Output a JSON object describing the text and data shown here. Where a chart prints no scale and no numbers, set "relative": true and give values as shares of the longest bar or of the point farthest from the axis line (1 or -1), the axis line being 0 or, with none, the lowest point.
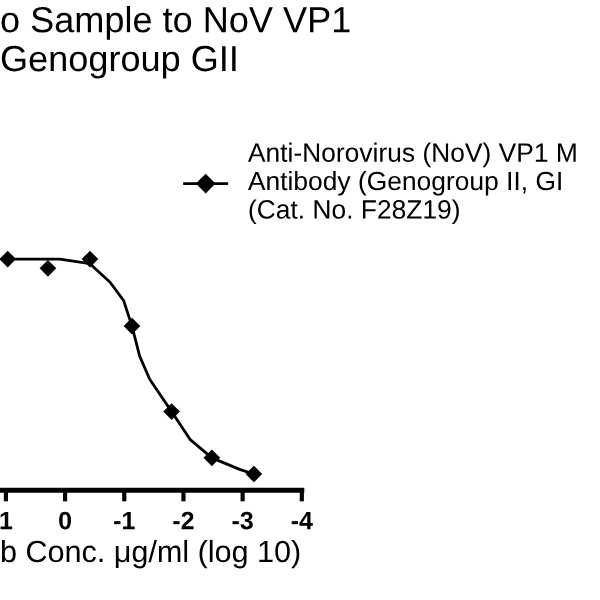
{
  "chart_data": {
    "type": "scatter",
    "title": "o Sample to NoV VP1\nGenogroup GII",
    "xlabel": "b Conc. μg/ml (log 10)",
    "relative": true,
    "xlim": [
      1.1,
      -4
    ],
    "xticks": [
      1,
      0,
      -1,
      -2,
      -3,
      -4
    ],
    "tick_labels": "x",
    "grid": false,
    "legend": "right",
    "marker": "diamond",
    "series": [
      {
        "name": "Anti-Norovirus (NoV) VP1 M\nAntibody (Genogroup II, GI\n(Cat. No. F28Z19)",
        "color": "#000000",
        "x": [
          0.97,
          0.29,
          -0.42,
          -1.13,
          -1.8,
          -2.48,
          -3.19
        ],
        "values": [
          1.0,
          0.96,
          1.0,
          0.71,
          0.34,
          0.14,
          0.07
        ]
      },
      {
        "type": "line",
        "marker": "none",
        "color": "#000000",
        "x": [
          1.0,
          0.09,
          -0.42,
          -0.76,
          -0.99,
          -1.13,
          -1.26,
          -1.43,
          -1.8,
          -2.11,
          -2.48,
          -2.95,
          -3.19
        ],
        "values": [
          1.0,
          1.0,
          0.98,
          0.9,
          0.82,
          0.71,
          0.58,
          0.48,
          0.34,
          0.22,
          0.14,
          0.09,
          0.07
        ]
      }
    ]
  }
}
